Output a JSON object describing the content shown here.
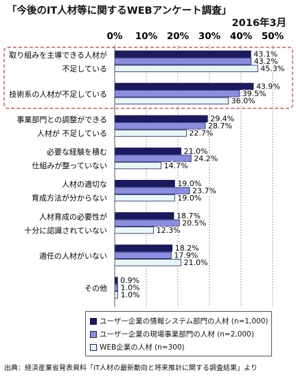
{
  "header": {
    "title": "「今後のIT人材等に関するWEBアンケート調査」",
    "date": "2016年3月"
  },
  "source": "出典：経済産業省発表資料「IT人材の最新動向と将来推計に関する調査結果」より",
  "colors": {
    "series1": "#1a1a5e",
    "series2": "#8a8ee0",
    "series3": "#e6f6f6",
    "bar_border": "#1a1a5e",
    "highlight": "#e0302a",
    "grid": "#9a9a9a"
  },
  "chart_data": {
    "type": "bar",
    "orientation": "horizontal",
    "title": "「今後のIT人材等に関するWEBアンケート調査」",
    "xlim": [
      0,
      50
    ],
    "xticks": [
      "0%",
      "10%",
      "20%",
      "30%",
      "40%",
      "50%"
    ],
    "grid": true,
    "categories": [
      [
        "取り組みを主導できる人材が",
        "不足している"
      ],
      [
        "技術系の人材が不足している"
      ],
      [
        "事業部門との調整ができる",
        "人材が 不足している"
      ],
      [
        "必要な経験を積む",
        "仕組みが整っていない"
      ],
      [
        "人材の適切な",
        "育成方法が分からない"
      ],
      [
        "人材育成の必要性が",
        "十分に認識されていない"
      ],
      [
        "適任の人材がいない"
      ],
      [
        "その他"
      ]
    ],
    "series": [
      {
        "name": "ユーザー企業の情報システム部門の人材 (n=1,000)",
        "values": [
          43.1,
          43.9,
          29.4,
          21.0,
          19.0,
          18.7,
          18.2,
          0.9
        ],
        "labels": [
          "43.1%",
          "43.9%",
          "29.4%",
          "21.0%",
          "19.0%",
          "18.7%",
          "18.2%",
          "0.9%"
        ]
      },
      {
        "name": "ユーザー企業の現場事業部門の人材 (n=2,000)",
        "values": [
          43.2,
          39.5,
          28.7,
          24.2,
          23.7,
          20.5,
          17.9,
          1.0
        ],
        "labels": [
          "43.2%",
          "39.5%",
          "28.7%",
          "24.2%",
          "23.7%",
          "20.5%",
          "17.9%",
          "1.0%"
        ]
      },
      {
        "name": "WEB企業の人材 (n=300)",
        "values": [
          45.3,
          36.0,
          22.7,
          14.7,
          19.0,
          12.3,
          21.0,
          1.0
        ],
        "labels": [
          "45.3%",
          "36.0%",
          "22.7%",
          "14.7%",
          "19.0%",
          "12.3%",
          "21.0%",
          "1.0%"
        ]
      }
    ],
    "highlighted_categories": [
      0,
      1
    ]
  }
}
